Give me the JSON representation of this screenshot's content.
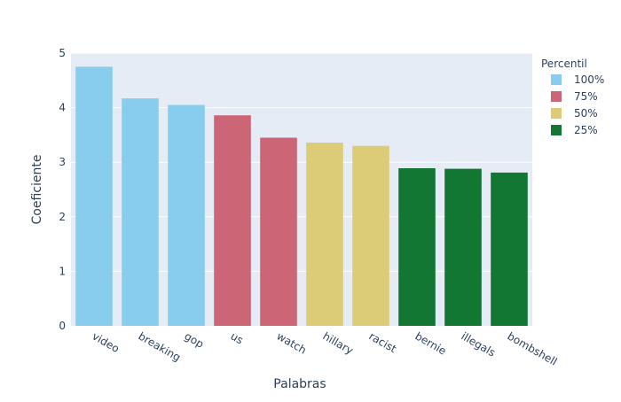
{
  "chart_data": {
    "type": "bar",
    "xlabel": "Palabras",
    "ylabel": "Coeficiente",
    "ylim": [
      0,
      5
    ],
    "yticks": [
      "0",
      "1",
      "2",
      "3",
      "4",
      "5"
    ],
    "grid": true,
    "legend": {
      "title": "Percentil",
      "placement": "top-right",
      "entries": [
        {
          "name": "100%",
          "color": "#88CCEE"
        },
        {
          "name": "75%",
          "color": "#CC6677"
        },
        {
          "name": "50%",
          "color": "#DDCC77"
        },
        {
          "name": "25%",
          "color": "#117733"
        }
      ]
    },
    "categories": [
      "video",
      "breaking",
      "gop",
      "us",
      "watch",
      "hillary",
      "racist",
      "bernie",
      "illegals",
      "bombshell"
    ],
    "series": [
      {
        "name": "100%",
        "color": "#88CCEE",
        "values": [
          4.75,
          4.17,
          4.05,
          null,
          null,
          null,
          null,
          null,
          null,
          null
        ]
      },
      {
        "name": "75%",
        "color": "#CC6677",
        "values": [
          null,
          null,
          null,
          3.86,
          3.45,
          null,
          null,
          null,
          null,
          null
        ]
      },
      {
        "name": "50%",
        "color": "#DDCC77",
        "values": [
          null,
          null,
          null,
          null,
          null,
          3.36,
          3.3,
          null,
          null,
          null
        ]
      },
      {
        "name": "25%",
        "color": "#117733",
        "values": [
          null,
          null,
          null,
          null,
          null,
          null,
          null,
          2.89,
          2.88,
          2.81
        ]
      }
    ],
    "colors": {
      "plot_bg": "#E5ECF6",
      "grid": "#ffffff",
      "tick_text": "#2a3f5f"
    }
  }
}
